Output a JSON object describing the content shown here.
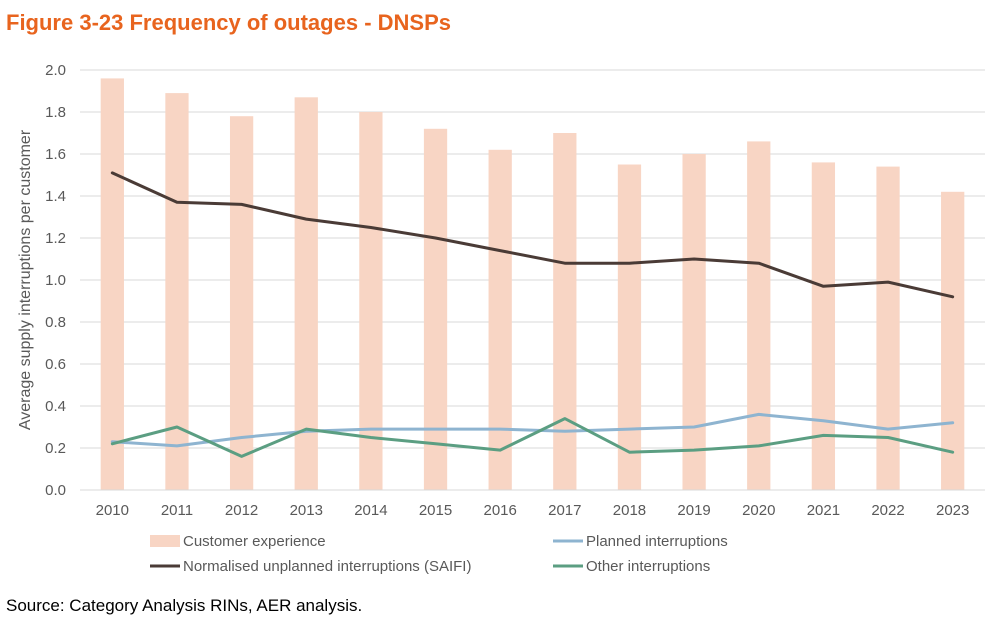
{
  "figure": {
    "title": "Figure 3-23 Frequency of outages - DNSPs",
    "source": "Source: Category Analysis RINs, AER analysis."
  },
  "colors": {
    "title": "#E8641E",
    "customer_experience": "#F8D5C4",
    "planned": "#8EB4D0",
    "saifi": "#4A3B36",
    "other": "#5B9E82",
    "grid": "#D9D9D9",
    "axis_text": "#595959"
  },
  "chart_data": {
    "type": "bar",
    "ylabel": "Average supply interruptions per customer",
    "xlabel": "",
    "ylim": [
      0,
      2.0
    ],
    "yticks": [
      "0.0",
      "0.2",
      "0.4",
      "0.6",
      "0.8",
      "1.0",
      "1.2",
      "1.4",
      "1.6",
      "1.8",
      "2.0"
    ],
    "grid": true,
    "legend_position": "bottom",
    "categories": [
      "2010",
      "2011",
      "2012",
      "2013",
      "2014",
      "2015",
      "2016",
      "2017",
      "2018",
      "2019",
      "2020",
      "2021",
      "2022",
      "2023"
    ],
    "series": [
      {
        "name": "Customer experience",
        "type": "bar",
        "values": [
          1.96,
          1.89,
          1.78,
          1.87,
          1.8,
          1.72,
          1.62,
          1.7,
          1.55,
          1.6,
          1.66,
          1.56,
          1.54,
          1.42
        ]
      },
      {
        "name": "Planned interruptions",
        "type": "line",
        "values": [
          0.23,
          0.21,
          0.25,
          0.28,
          0.29,
          0.29,
          0.29,
          0.28,
          0.29,
          0.3,
          0.36,
          0.33,
          0.29,
          0.32
        ]
      },
      {
        "name": "Normalised unplanned interruptions (SAIFI)",
        "type": "line",
        "values": [
          1.51,
          1.37,
          1.36,
          1.29,
          1.25,
          1.2,
          1.14,
          1.08,
          1.08,
          1.1,
          1.08,
          0.97,
          0.99,
          0.92
        ]
      },
      {
        "name": "Other interruptions",
        "type": "line",
        "values": [
          0.22,
          0.3,
          0.16,
          0.29,
          0.25,
          0.22,
          0.19,
          0.34,
          0.18,
          0.19,
          0.21,
          0.26,
          0.25,
          0.18
        ]
      }
    ]
  }
}
